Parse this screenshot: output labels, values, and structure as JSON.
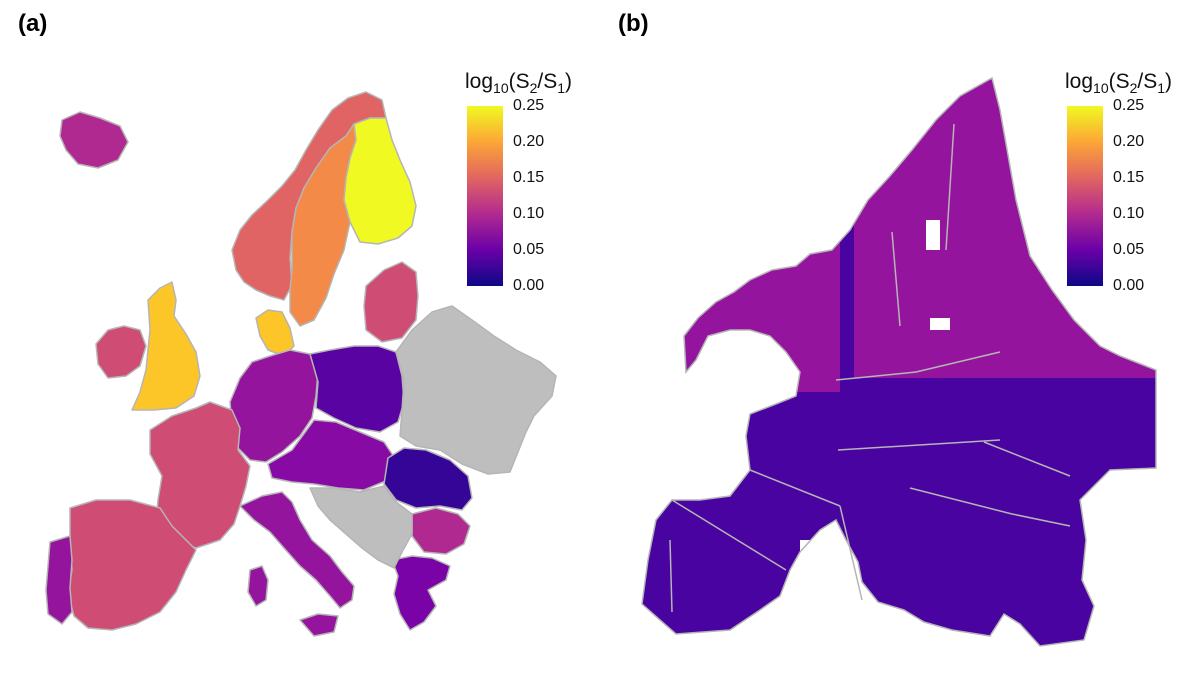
{
  "panels": [
    {
      "label": "(a)"
    },
    {
      "label": "(b)"
    }
  ],
  "legend": {
    "title_main": "log",
    "title_sub10": "10",
    "title_rest_open": "(S",
    "title_sub2": "2",
    "title_slash": "/S",
    "title_sub1": "1",
    "title_close": ")",
    "ticks": [
      "0.25",
      "0.20",
      "0.15",
      "0.10",
      "0.05",
      "0.00"
    ],
    "range": [
      0.0,
      0.25
    ],
    "colormap": "plasma"
  },
  "colors": {
    "no_data": "#bebebe",
    "border": "#b5b5b5",
    "background": "#ffffff"
  },
  "map_a_country_values": {
    "Iceland": 0.1,
    "Norway": 0.15,
    "Sweden": 0.18,
    "Finland": 0.25,
    "Ireland": 0.13,
    "United Kingdom": 0.22,
    "Denmark": 0.22,
    "Baltics": 0.13,
    "Germany": 0.08,
    "Poland": 0.04,
    "Czechia/Austria/Hungary": 0.07,
    "Romania": 0.02,
    "France": 0.13,
    "Spain": 0.13,
    "Portugal": 0.08,
    "Italy": 0.08,
    "Bulgaria": 0.1,
    "Greece": 0.06,
    "Eastern Europe (no data)": null,
    "Balkans (no data)": null
  },
  "map_b_values": {
    "north": 0.08,
    "south": 0.03
  }
}
